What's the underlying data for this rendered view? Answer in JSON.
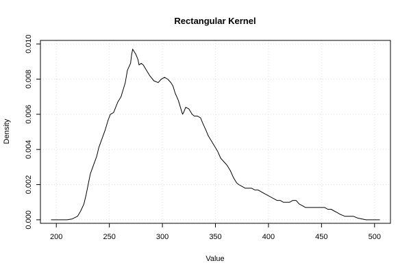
{
  "chart_data": {
    "type": "line",
    "title": "Rectangular Kernel",
    "xlabel": "Value",
    "ylabel": "Density",
    "xlim": [
      185,
      515
    ],
    "ylim": [
      -0.0002,
      0.0102
    ],
    "x_ticks": [
      200,
      250,
      300,
      350,
      400,
      450,
      500
    ],
    "y_ticks": [
      0.0,
      0.002,
      0.004,
      0.006,
      0.008,
      0.01
    ],
    "y_tick_labels": [
      "0.000",
      "0.002",
      "0.004",
      "0.006",
      "0.008",
      "0.010"
    ],
    "grid": true,
    "legend": "none",
    "line_color": "#000000",
    "grid_color": "#dddddd",
    "series": [
      {
        "x": [
          195,
          210,
          215,
          220,
          223,
          226,
          228,
          230,
          232,
          235,
          238,
          240,
          243,
          246,
          249,
          251,
          254,
          256,
          258,
          261,
          263,
          265,
          267,
          270,
          271,
          272,
          273,
          275,
          277,
          278,
          280,
          282,
          285,
          288,
          292,
          296,
          299,
          302,
          305,
          308,
          310,
          312,
          315,
          318,
          319,
          320,
          322,
          325,
          328,
          330,
          333,
          336,
          338,
          341,
          343,
          346,
          349,
          352,
          355,
          358,
          361,
          364,
          367,
          370,
          372,
          375,
          378,
          381,
          384,
          387,
          390,
          393,
          396,
          399,
          402,
          405,
          408,
          411,
          414,
          417,
          420,
          423,
          426,
          429,
          432,
          435,
          438,
          441,
          444,
          447,
          450,
          453,
          456,
          459,
          462,
          465,
          468,
          472,
          476,
          480,
          484,
          488,
          492,
          496,
          500,
          505
        ],
        "y": [
          0.0,
          0.0,
          5e-05,
          0.0002,
          0.0005,
          0.0009,
          0.0014,
          0.002,
          0.0026,
          0.0031,
          0.0036,
          0.0041,
          0.0046,
          0.0051,
          0.0057,
          0.006,
          0.0061,
          0.0064,
          0.0067,
          0.007,
          0.0074,
          0.0078,
          0.0085,
          0.0089,
          0.0094,
          0.0097,
          0.0096,
          0.0094,
          0.0091,
          0.0088,
          0.0089,
          0.0088,
          0.0085,
          0.0082,
          0.0079,
          0.0078,
          0.008,
          0.0081,
          0.008,
          0.0078,
          0.0076,
          0.0072,
          0.0068,
          0.0062,
          0.006,
          0.0061,
          0.0064,
          0.0063,
          0.006,
          0.0059,
          0.0059,
          0.0058,
          0.0055,
          0.0051,
          0.0048,
          0.0045,
          0.0042,
          0.0039,
          0.0035,
          0.0033,
          0.0031,
          0.0028,
          0.0024,
          0.0021,
          0.002,
          0.0019,
          0.0018,
          0.0018,
          0.0018,
          0.0017,
          0.0017,
          0.0016,
          0.0015,
          0.0014,
          0.0013,
          0.0012,
          0.0011,
          0.0011,
          0.001,
          0.001,
          0.001,
          0.0011,
          0.0011,
          0.0009,
          0.0008,
          0.0007,
          0.0007,
          0.0007,
          0.0007,
          0.0007,
          0.0007,
          0.0007,
          0.0006,
          0.0006,
          0.0005,
          0.0004,
          0.0003,
          0.0002,
          0.0002,
          0.0002,
          0.0001,
          5e-05,
          0.0,
          0.0,
          0.0,
          0.0
        ]
      }
    ]
  }
}
